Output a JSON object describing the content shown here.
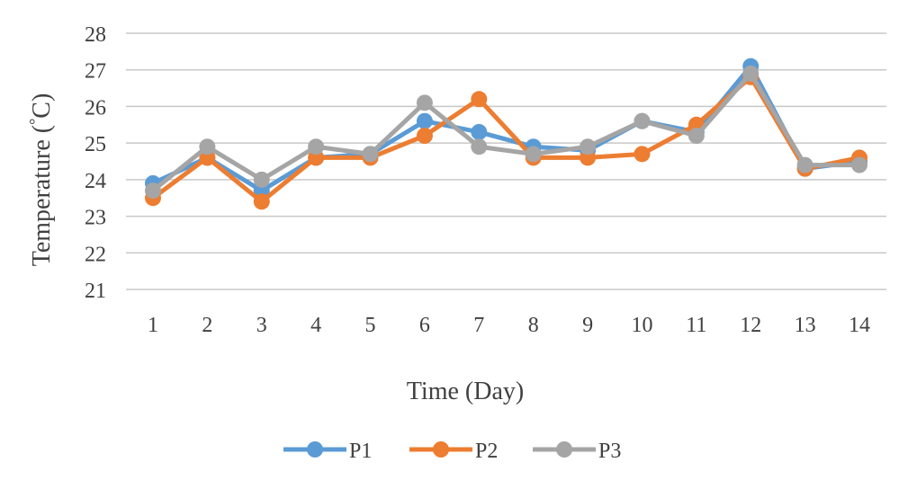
{
  "chart_data": {
    "type": "line",
    "title": "",
    "xlabel": "Time (Day)",
    "ylabel": "Temperature (°C)",
    "ylabel_main": "Temperature (",
    "ylabel_deg": "°",
    "ylabel_unit": "C)",
    "x": [
      1,
      2,
      3,
      4,
      5,
      6,
      7,
      8,
      9,
      10,
      11,
      12,
      13,
      14
    ],
    "ylim": [
      21,
      28
    ],
    "yticks": [
      21,
      22,
      23,
      24,
      25,
      26,
      27,
      28
    ],
    "grid": true,
    "legend_position": "bottom",
    "series": [
      {
        "name": "P1",
        "color": "#5b9bd5",
        "values": [
          23.9,
          24.6,
          23.7,
          24.6,
          24.7,
          25.6,
          25.3,
          24.9,
          24.8,
          25.6,
          25.3,
          27.1,
          24.3,
          24.5
        ]
      },
      {
        "name": "P2",
        "color": "#ed7d31",
        "values": [
          23.5,
          24.6,
          23.4,
          24.6,
          24.6,
          25.2,
          26.2,
          24.6,
          24.6,
          24.7,
          25.5,
          26.8,
          24.3,
          24.6
        ]
      },
      {
        "name": "P3",
        "color": "#a5a5a5",
        "values": [
          23.7,
          24.9,
          24.0,
          24.9,
          24.7,
          26.1,
          24.9,
          24.7,
          24.9,
          25.6,
          25.2,
          26.9,
          24.4,
          24.4
        ]
      }
    ]
  }
}
